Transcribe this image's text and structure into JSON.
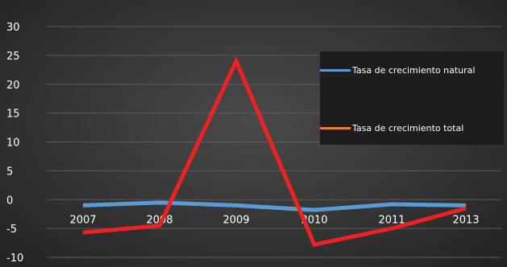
{
  "chart_data": {
    "type": "line",
    "categories": [
      "2007",
      "2008",
      "2009",
      "2010",
      "2011",
      "2013"
    ],
    "ylim": [
      -10,
      30
    ],
    "yticks": [
      30,
      25,
      20,
      15,
      10,
      5,
      0,
      -5,
      -10
    ],
    "grid": true,
    "legend_position": "right",
    "series": [
      {
        "name": "Tasa de crecimiento natural",
        "color": "#5b9bd5",
        "values": [
          -1,
          -0.5,
          -1,
          -1.8,
          -0.8,
          -1
        ]
      },
      {
        "name": "Tasa de crecimiento total",
        "color": "#ed7d31",
        "values": [
          -5.7,
          -4.5,
          24,
          -7.8,
          -5,
          -1.5
        ]
      }
    ],
    "line_colors": [
      "#5b9bd5",
      "#ee2222"
    ]
  }
}
